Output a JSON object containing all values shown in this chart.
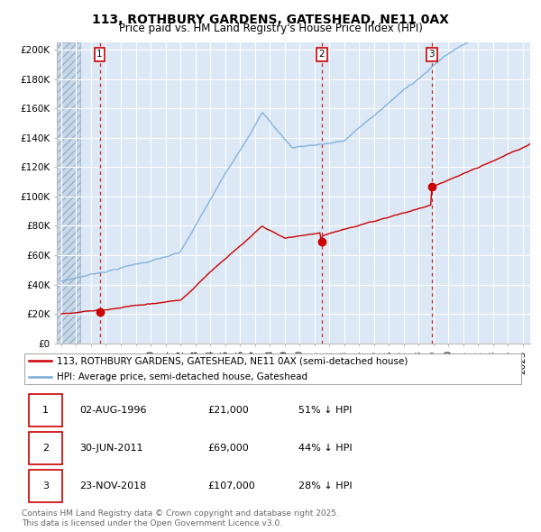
{
  "title": "113, ROTHBURY GARDENS, GATESHEAD, NE11 0AX",
  "subtitle": "Price paid vs. HM Land Registry's House Price Index (HPI)",
  "ylabel_ticks": [
    "£0",
    "£20K",
    "£40K",
    "£60K",
    "£80K",
    "£100K",
    "£120K",
    "£140K",
    "£160K",
    "£180K",
    "£200K"
  ],
  "ytick_values": [
    0,
    20000,
    40000,
    60000,
    80000,
    100000,
    120000,
    140000,
    160000,
    180000,
    200000
  ],
  "ylim": [
    0,
    205000
  ],
  "xlim_start": 1993.7,
  "xlim_end": 2025.5,
  "sale_dates": [
    1996.58,
    2011.49,
    2018.89
  ],
  "sale_prices": [
    21000,
    69000,
    107000
  ],
  "sale_labels": [
    "1",
    "2",
    "3"
  ],
  "red_line_color": "#cc0000",
  "blue_line_color": "#7aaddc",
  "marker_color": "#cc0000",
  "bg_color": "#dce8f5",
  "hatch_bg_color": "#c8d8e8",
  "grid_color": "#ffffff",
  "legend_red_label": "113, ROTHBURY GARDENS, GATESHEAD, NE11 0AX (semi-detached house)",
  "legend_blue_label": "HPI: Average price, semi-detached house, Gateshead",
  "table_data": [
    [
      "1",
      "02-AUG-1996",
      "£21,000",
      "51% ↓ HPI"
    ],
    [
      "2",
      "30-JUN-2011",
      "£69,000",
      "44% ↓ HPI"
    ],
    [
      "3",
      "23-NOV-2018",
      "£107,000",
      "28% ↓ HPI"
    ]
  ],
  "footnote": "Contains HM Land Registry data © Crown copyright and database right 2025.\nThis data is licensed under the Open Government Licence v3.0.",
  "title_fontsize": 10,
  "subtitle_fontsize": 8.5,
  "tick_fontsize": 7.5,
  "legend_fontsize": 7.5,
  "table_fontsize": 8,
  "footnote_fontsize": 6.5
}
